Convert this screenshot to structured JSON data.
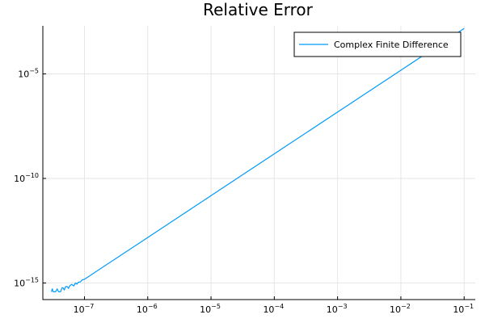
{
  "chart_data": {
    "type": "line",
    "title": "Relative Error",
    "xlabel": "",
    "ylabel": "",
    "xscale": "log",
    "yscale": "log",
    "xlim": [
      2.2e-08,
      0.15
    ],
    "ylim": [
      1.6e-16,
      0.002
    ],
    "grid": true,
    "legend_placement": "top-right",
    "x_ticks": [
      {
        "value": 1e-07,
        "base": "10",
        "exp": "−7"
      },
      {
        "value": 1e-06,
        "base": "10",
        "exp": "−6"
      },
      {
        "value": 1e-05,
        "base": "10",
        "exp": "−5"
      },
      {
        "value": 0.0001,
        "base": "10",
        "exp": "−4"
      },
      {
        "value": 0.001,
        "base": "10",
        "exp": "−3"
      },
      {
        "value": 0.01,
        "base": "10",
        "exp": "−2"
      },
      {
        "value": 0.1,
        "base": "10",
        "exp": "−1"
      }
    ],
    "y_ticks": [
      {
        "value": 1e-15,
        "base": "10",
        "exp": "−15"
      },
      {
        "value": 1e-10,
        "base": "10",
        "exp": "−10"
      },
      {
        "value": 1e-05,
        "base": "10",
        "exp": "−5"
      }
    ],
    "series": [
      {
        "name": "Complex Finite Difference",
        "color": "#009af9",
        "points": [
          [
            3e-08,
            3.8e-16
          ],
          [
            3.1e-08,
            5.2e-16
          ],
          [
            3.2e-08,
            3.8e-16
          ],
          [
            3.5e-08,
            3.8e-16
          ],
          [
            3.7e-08,
            5.2e-16
          ],
          [
            3.9e-08,
            3.8e-16
          ],
          [
            4.2e-08,
            3.8e-16
          ],
          [
            4.4e-08,
            5.8e-16
          ],
          [
            4.6e-08,
            5.8e-16
          ],
          [
            4.8e-08,
            4.6e-16
          ],
          [
            5e-08,
            6.5e-16
          ],
          [
            5.3e-08,
            6.8e-16
          ],
          [
            5.6e-08,
            5.5e-16
          ],
          [
            5.9e-08,
            7.6e-16
          ],
          [
            6.3e-08,
            8.5e-16
          ],
          [
            6.8e-08,
            7.2e-16
          ],
          [
            7.2e-08,
            1e-15
          ],
          [
            7.6e-08,
            8.8e-16
          ],
          [
            8e-08,
            1.08e-15
          ],
          [
            8.6e-08,
            1.12e-15
          ],
          [
            9.2e-08,
            1.4e-15
          ],
          [
            1e-07,
            1.5e-15
          ],
          [
            1e-06,
            1.5e-13
          ],
          [
            1e-05,
            1.5e-11
          ],
          [
            0.0001,
            1.5e-09
          ],
          [
            0.001,
            1.5e-07
          ],
          [
            0.01,
            1.5e-05
          ],
          [
            0.1,
            0.0015
          ]
        ]
      }
    ]
  }
}
